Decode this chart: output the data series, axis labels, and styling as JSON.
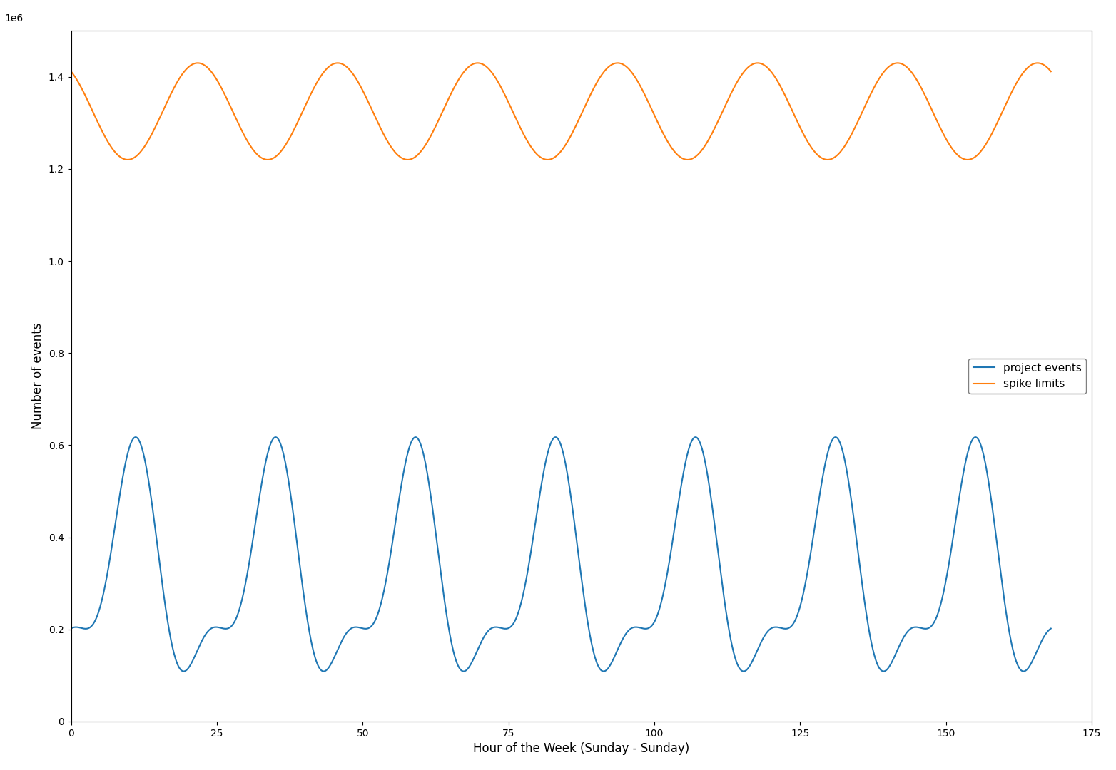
{
  "xlabel": "Hour of the Week (Sunday - Sunday)",
  "ylabel": "Number of events",
  "xlim": [
    0,
    175
  ],
  "ylim": [
    0,
    1500000
  ],
  "blue_color": "#1f77b4",
  "orange_color": "#ff7f0e",
  "legend_labels": [
    "project events",
    "spike limits"
  ],
  "figsize": [
    15.64,
    10.8
  ],
  "dpi": 100,
  "orange_base": 1325000,
  "orange_amplitude": 105000,
  "orange_period": 24,
  "orange_phase": 0.6,
  "blue_base": 310000,
  "blue_amp1": 215000,
  "blue_amp2": 95000,
  "blue_amp3": 30000,
  "blue_period": 24,
  "blue_phase1": 0.55,
  "blue_phase2": 0.3,
  "hours": 168,
  "yticks": [
    0,
    200000,
    400000,
    600000,
    800000,
    1000000,
    1200000,
    1400000
  ],
  "xticks": [
    0,
    25,
    50,
    75,
    100,
    125,
    150,
    175
  ]
}
